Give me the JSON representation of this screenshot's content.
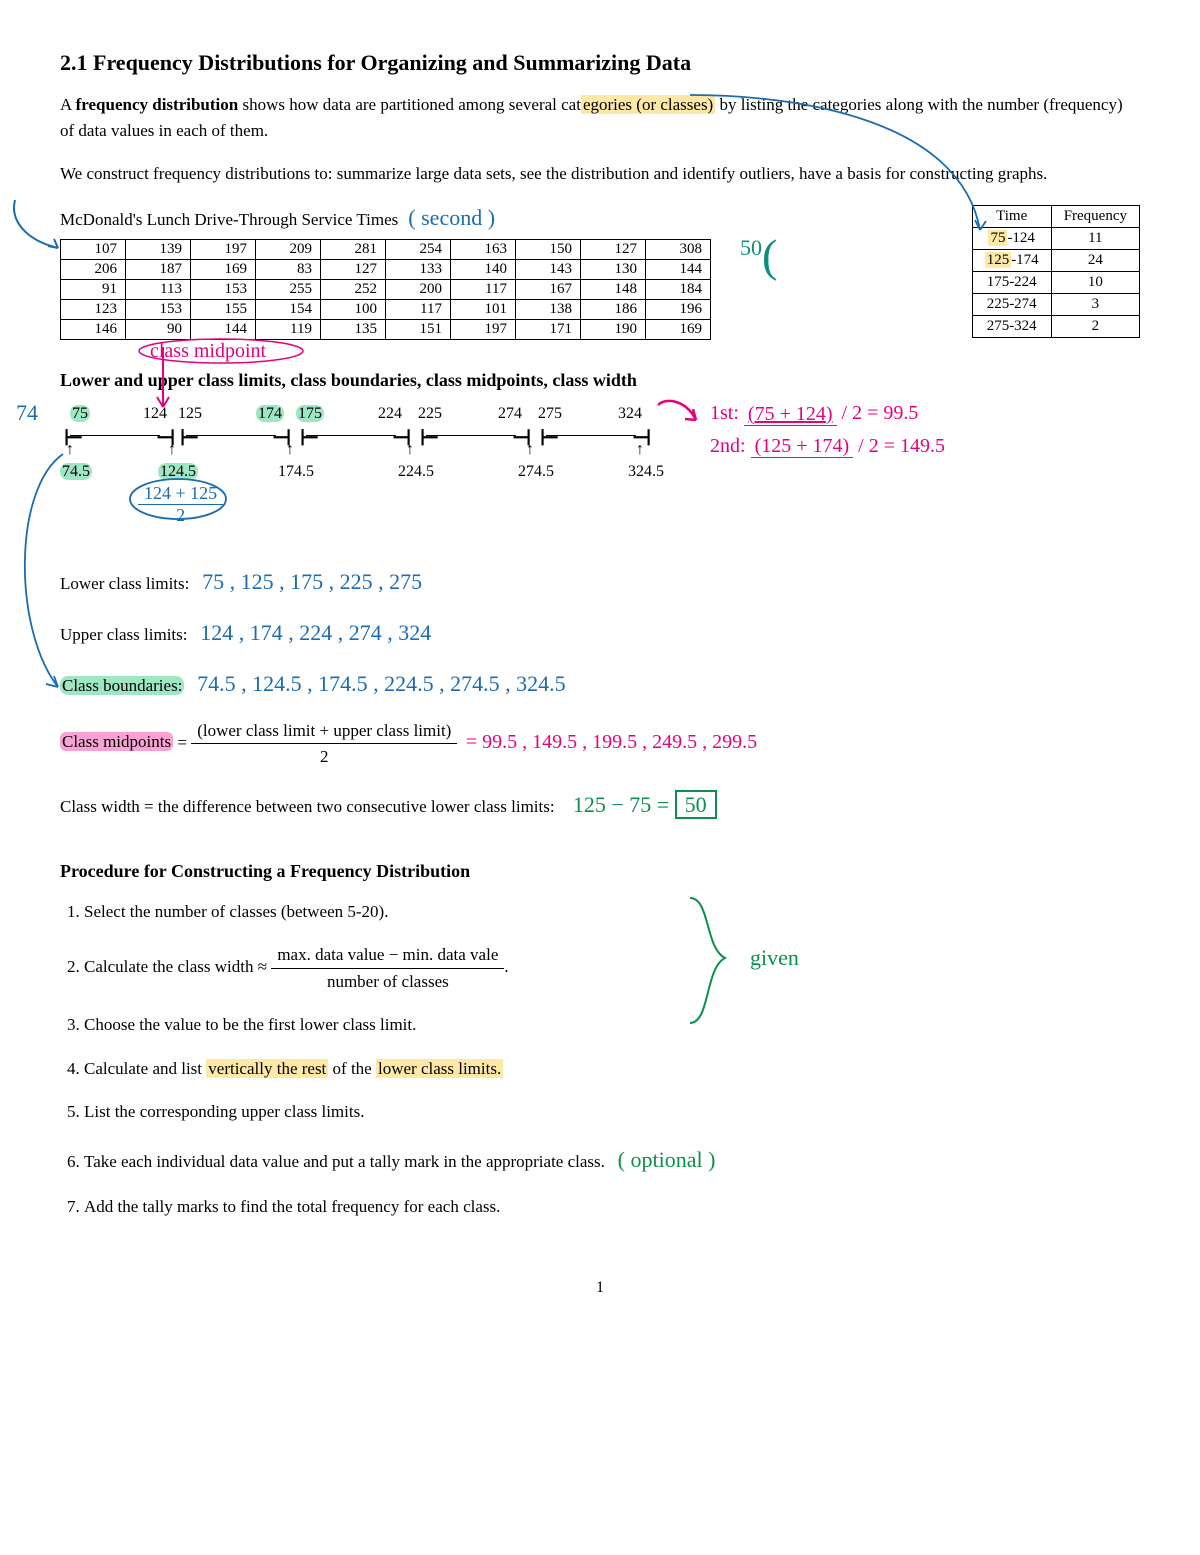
{
  "title": "2.1 Frequency Distributions for Organizing and Summarizing Data",
  "intro": {
    "p1a": "A ",
    "p1b": "frequency distribution",
    "p1c": " shows how data are partitioned among several cat",
    "p1d": "egories (or classes)",
    "p1e": " by listing the categories along with the number (frequency) of data values in each of them.",
    "p2": "We construct frequency distributions to: summarize large data sets, see the distribution and identify outliers, have a basis for constructing graphs."
  },
  "example": {
    "caption": "McDonald's Lunch Drive-Through Service Times",
    "caption_anno": "( second )",
    "class_width_anno": "50",
    "data": [
      [
        107,
        139,
        197,
        209,
        281,
        254,
        163,
        150,
        127,
        308
      ],
      [
        206,
        187,
        169,
        83,
        127,
        133,
        140,
        143,
        130,
        144
      ],
      [
        91,
        113,
        153,
        255,
        252,
        200,
        117,
        167,
        148,
        184
      ],
      [
        123,
        153,
        155,
        154,
        100,
        117,
        101,
        138,
        186,
        196
      ],
      [
        146,
        90,
        144,
        119,
        135,
        151,
        197,
        171,
        190,
        169
      ]
    ],
    "freq": {
      "head_time": "Time",
      "head_freq": "Frequency",
      "rows": [
        {
          "t": "75-124",
          "hl": "75",
          "f": "11"
        },
        {
          "t": "125-174",
          "hl": "125",
          "f": "24"
        },
        {
          "t": "175-224",
          "f": "10"
        },
        {
          "t": "225-274",
          "f": "3"
        },
        {
          "t": "275-324",
          "f": "2"
        }
      ]
    }
  },
  "limits_heading": "Lower and upper class limits, class boundaries, class midpoints, class width",
  "midpoint_label": "class midpoint",
  "numberline": {
    "ticks_top": [
      "75",
      "124",
      "125",
      "174",
      "175",
      "224",
      "225",
      "274",
      "275",
      "324"
    ],
    "ticks_bottom": [
      "74.5",
      "124.5",
      "174.5",
      "224.5",
      "274.5",
      "324.5"
    ],
    "left74": "74",
    "frac_anno": "124 + 125",
    "frac_den": "2",
    "calc1": "1st:  (75 + 124)⁄2 = 99.5",
    "calc2": "2nd: (125 + 174)⁄2 = 149.5"
  },
  "lists": {
    "lower_label": "Lower class limits:",
    "lower_vals": "75 , 125 , 175 , 225 , 275",
    "upper_label": "Upper class limits:",
    "upper_vals": "124 , 174 , 224 , 274 , 324",
    "bound_label": "Class boundaries:",
    "bound_vals": "74.5 , 124.5 , 174.5 , 224.5 , 274.5 , 324.5",
    "mid_label": "Class midpoints",
    "mid_formula_num": "(lower class limit + upper class limit)",
    "mid_formula_den": "2",
    "mid_vals": "= 99.5 , 149.5 , 199.5 , 249.5 , 299.5",
    "width_label": "Class width = the difference between two consecutive lower class limits:",
    "width_calc_a": "125 − 75 =",
    "width_calc_b": "50"
  },
  "procedure": {
    "heading": "Procedure for Constructing a Frequency Distribution",
    "s1": "Select the number of classes (between 5-20).",
    "s2a": "Calculate the class width ≈ ",
    "s2num": "max. data value − min. data vale",
    "s2den": "number of classes",
    "s2b": ".",
    "s3": "Choose the value to be the first lower class limit.",
    "s4a": "Calculate and list ",
    "s4b": "vertically the rest",
    "s4c": " of the ",
    "s4d": "lower class limits.",
    "s5": "List the corresponding upper class limits.",
    "s6": "Take each individual data value and put a tally mark in the appropriate class.",
    "s7": "Add the tally marks to find the total frequency for each class.",
    "anno_given": "given",
    "anno_optional": "( optional )"
  },
  "pagenum": "1"
}
